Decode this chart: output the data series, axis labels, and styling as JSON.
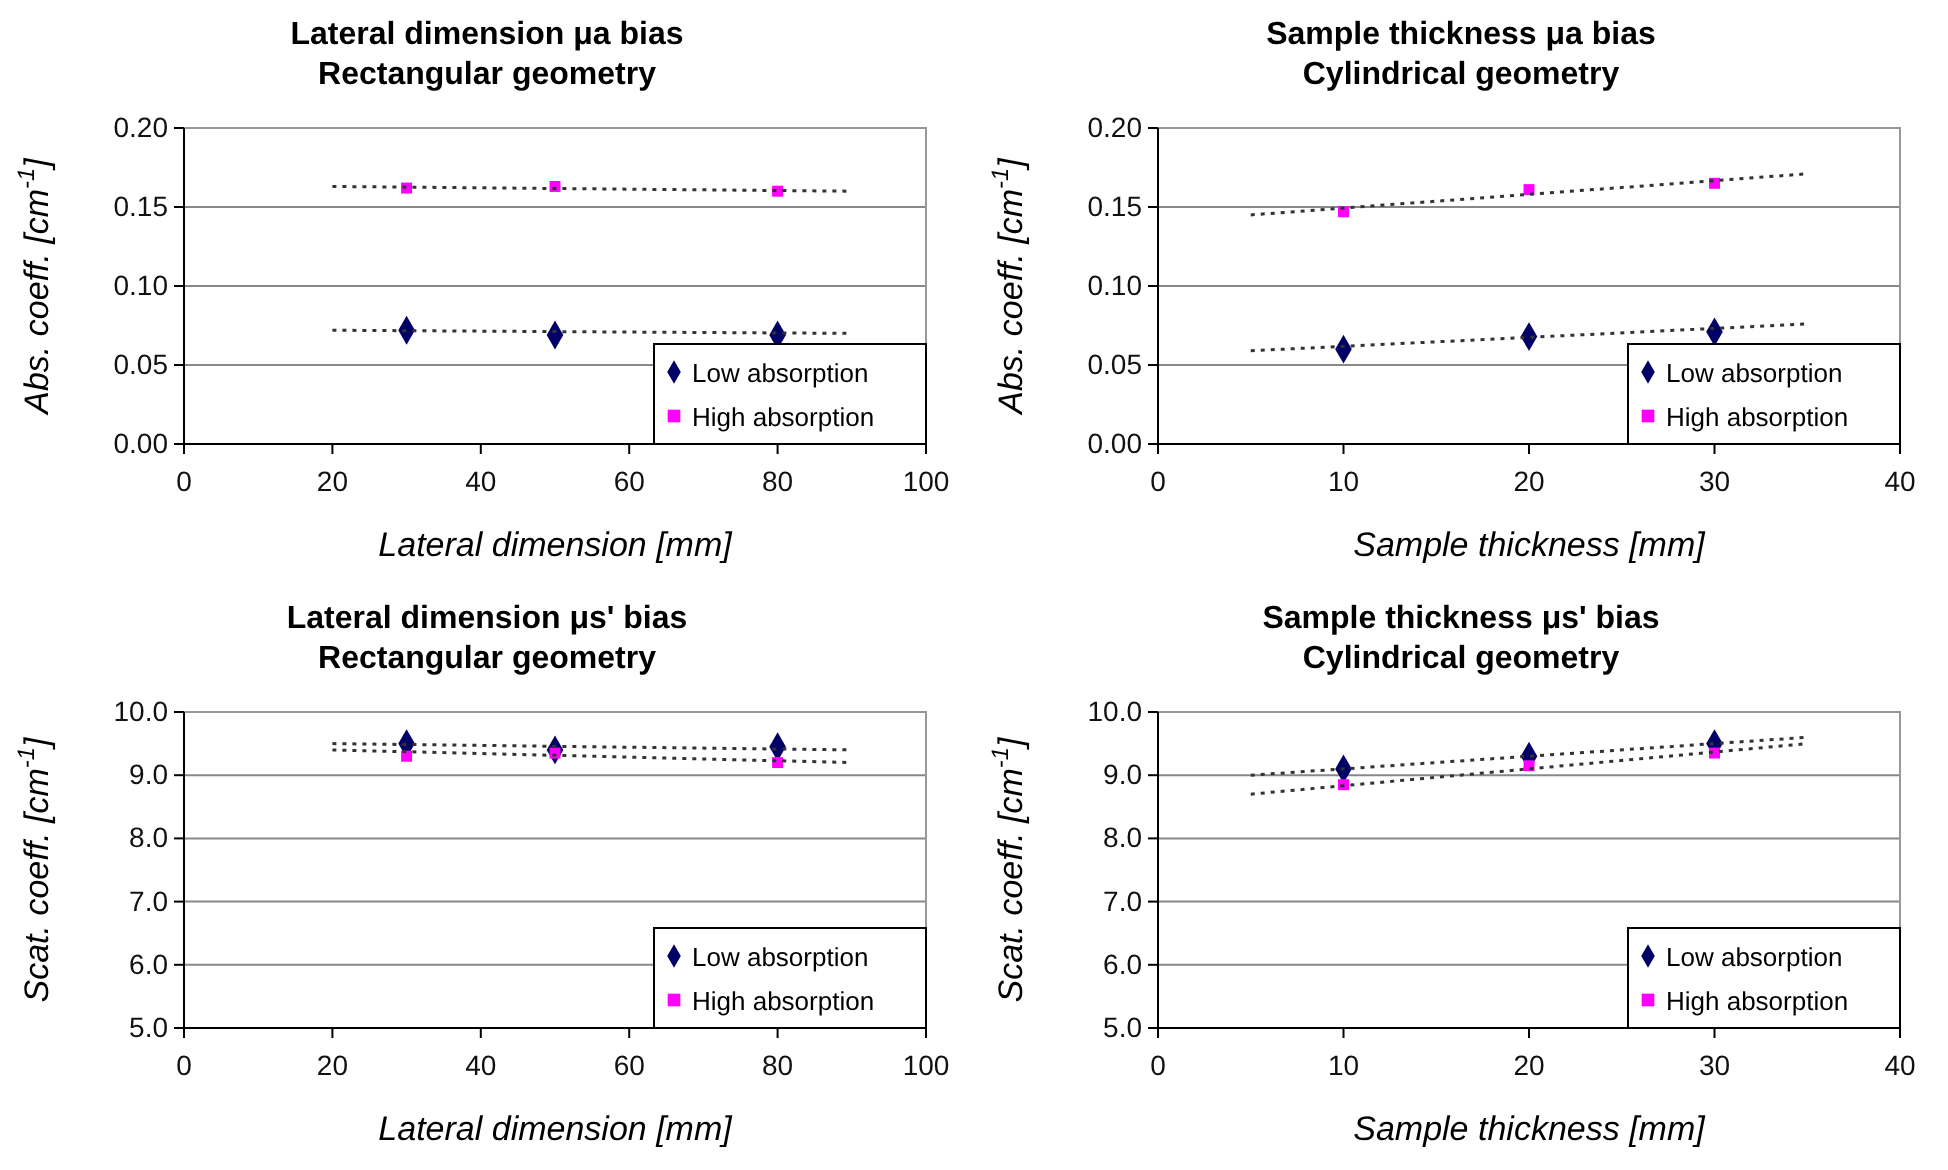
{
  "chart_data": [
    {
      "type": "scatter",
      "title": "Lateral dimension μa bias",
      "subtitle": "Rectangular geometry",
      "xlabel": "Lateral dimension [mm]",
      "ylabel": "Abs. coeff. [cm$^{-1}$]",
      "xlim": [
        0,
        100
      ],
      "xticks": [
        0,
        20,
        40,
        60,
        80,
        100
      ],
      "ylim": [
        0,
        0.2
      ],
      "yticks": [
        {
          "value": 0,
          "label": "0.00"
        },
        {
          "value": 0.05,
          "label": "0.05"
        },
        {
          "value": 0.1,
          "label": "0.10"
        },
        {
          "value": 0.15,
          "label": "0.15"
        },
        {
          "value": 0.2,
          "label": "0.20"
        }
      ],
      "grid": "y",
      "legend": "bottom right",
      "series": [
        {
          "name": "Low absorption",
          "color": "#000066",
          "marker": "diamond",
          "x": [
            30,
            50,
            80
          ],
          "values": [
            0.072,
            0.069,
            0.069
          ]
        },
        {
          "name": "High absorption",
          "color": "#ff00ff",
          "marker": "square",
          "x": [
            30,
            50,
            80
          ],
          "values": [
            0.162,
            0.163,
            0.16
          ]
        },
        {
          "type": "line",
          "color": "#333333",
          "line_style": "dotted",
          "marker": "none",
          "x": [
            20,
            90
          ],
          "values": [
            0.072,
            0.07
          ]
        },
        {
          "type": "line",
          "color": "#333333",
          "line_style": "dotted",
          "marker": "none",
          "x": [
            20,
            90
          ],
          "values": [
            0.163,
            0.16
          ]
        }
      ]
    },
    {
      "type": "scatter",
      "title": "Sample thickness μa bias",
      "subtitle": "Cylindrical geometry",
      "xlabel": "Sample thickness  [mm]",
      "ylabel": "Abs. coeff. [cm$^{-1}$]",
      "xlim": [
        0,
        40
      ],
      "xticks": [
        0,
        10,
        20,
        30,
        40
      ],
      "ylim": [
        0,
        0.2
      ],
      "yticks": [
        {
          "value": 0,
          "label": "0.00"
        },
        {
          "value": 0.05,
          "label": "0.05"
        },
        {
          "value": 0.1,
          "label": "0.10"
        },
        {
          "value": 0.15,
          "label": "0.15"
        },
        {
          "value": 0.2,
          "label": "0.20"
        }
      ],
      "grid": "y",
      "legend": "bottom right",
      "series": [
        {
          "name": "Low absorption",
          "color": "#000066",
          "marker": "diamond",
          "x": [
            10,
            20,
            30
          ],
          "values": [
            0.06,
            0.068,
            0.071
          ]
        },
        {
          "name": "High absorption",
          "color": "#ff00ff",
          "marker": "square",
          "x": [
            10,
            20,
            30
          ],
          "values": [
            0.147,
            0.161,
            0.165
          ]
        },
        {
          "type": "line",
          "color": "#333333",
          "line_style": "dotted",
          "marker": "none",
          "x": [
            5,
            35
          ],
          "values": [
            0.059,
            0.076
          ]
        },
        {
          "type": "line",
          "color": "#333333",
          "line_style": "dotted",
          "marker": "none",
          "x": [
            5,
            35
          ],
          "values": [
            0.145,
            0.171
          ]
        }
      ]
    },
    {
      "type": "scatter",
      "title": "Lateral dimension μs' bias",
      "subtitle": "Rectangular geometry",
      "xlabel": "Lateral dimension [mm]",
      "ylabel": "Scat. coeff. [cm$^{-1}$]",
      "xlim": [
        0,
        100
      ],
      "xticks": [
        0,
        20,
        40,
        60,
        80,
        100
      ],
      "ylim": [
        5,
        10
      ],
      "yticks": [
        {
          "value": 5,
          "label": "5.0"
        },
        {
          "value": 6,
          "label": "6.0"
        },
        {
          "value": 7,
          "label": "7.0"
        },
        {
          "value": 8,
          "label": "8.0"
        },
        {
          "value": 9,
          "label": "9.0"
        },
        {
          "value": 10,
          "label": "10.0"
        }
      ],
      "grid": "y",
      "legend": "bottom right",
      "series": [
        {
          "name": "Low absorption",
          "color": "#000066",
          "marker": "diamond",
          "x": [
            30,
            50,
            80
          ],
          "values": [
            9.5,
            9.4,
            9.45
          ]
        },
        {
          "name": "High absorption",
          "color": "#ff00ff",
          "marker": "square",
          "x": [
            30,
            50,
            80
          ],
          "values": [
            9.3,
            9.35,
            9.2
          ]
        },
        {
          "type": "line",
          "color": "#333333",
          "line_style": "dotted",
          "marker": "none",
          "x": [
            20,
            90
          ],
          "values": [
            9.5,
            9.4
          ]
        },
        {
          "type": "line",
          "color": "#333333",
          "line_style": "dotted",
          "marker": "none",
          "x": [
            20,
            90
          ],
          "values": [
            9.4,
            9.2
          ]
        }
      ]
    },
    {
      "type": "scatter",
      "title": "Sample thickness μs' bias",
      "subtitle": "Cylindrical geometry",
      "xlabel": "Sample thickness  [mm]",
      "ylabel": "Scat. coeff. [cm$^{-1}$]",
      "xlim": [
        0,
        40
      ],
      "xticks": [
        0,
        10,
        20,
        30,
        40
      ],
      "ylim": [
        5,
        10
      ],
      "yticks": [
        {
          "value": 5,
          "label": "5.0"
        },
        {
          "value": 6,
          "label": "6.0"
        },
        {
          "value": 7,
          "label": "7.0"
        },
        {
          "value": 8,
          "label": "8.0"
        },
        {
          "value": 9,
          "label": "9.0"
        },
        {
          "value": 10,
          "label": "10.0"
        }
      ],
      "grid": "y",
      "legend": "bottom right",
      "series": [
        {
          "name": "Low absorption",
          "color": "#000066",
          "marker": "diamond",
          "x": [
            10,
            20,
            30
          ],
          "values": [
            9.1,
            9.3,
            9.5
          ]
        },
        {
          "name": "High absorption",
          "color": "#ff00ff",
          "marker": "square",
          "x": [
            10,
            20,
            30
          ],
          "values": [
            8.85,
            9.15,
            9.35
          ]
        },
        {
          "type": "line",
          "color": "#333333",
          "line_style": "dotted",
          "marker": "none",
          "x": [
            5,
            35
          ],
          "values": [
            9.0,
            9.6
          ]
        },
        {
          "type": "line",
          "color": "#333333",
          "line_style": "dotted",
          "marker": "none",
          "x": [
            5,
            35
          ],
          "values": [
            8.7,
            9.5
          ]
        }
      ]
    }
  ]
}
